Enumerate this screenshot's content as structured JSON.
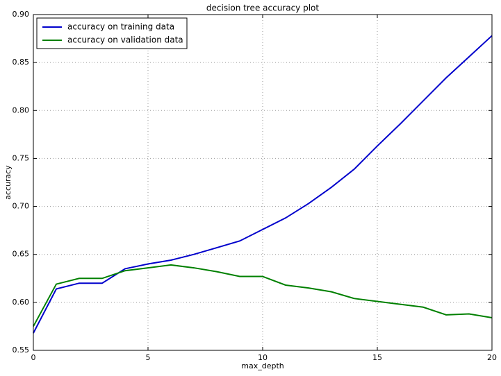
{
  "chart_data": {
    "type": "line",
    "title": "decision tree accuracy plot",
    "x_label": "max_depth",
    "y_label": "accuracy",
    "x": [
      0,
      1,
      2,
      3,
      4,
      5,
      6,
      7,
      8,
      9,
      10,
      11,
      12,
      13,
      14,
      15,
      16,
      17,
      18,
      19,
      20
    ],
    "series": [
      {
        "name": "accuracy on training data",
        "color": "#0000cc",
        "values": [
          0.568,
          0.614,
          0.62,
          0.62,
          0.635,
          0.64,
          0.644,
          0.65,
          0.657,
          0.664,
          0.676,
          0.688,
          0.703,
          0.72,
          0.739,
          0.763,
          0.786,
          0.81,
          0.834,
          0.856,
          0.878
        ]
      },
      {
        "name": "accuracy on validation data",
        "color": "#008000",
        "values": [
          0.575,
          0.619,
          0.625,
          0.625,
          0.633,
          0.636,
          0.639,
          0.636,
          0.632,
          0.627,
          0.627,
          0.618,
          0.615,
          0.611,
          0.604,
          0.601,
          0.598,
          0.595,
          0.587,
          0.588,
          0.584
        ]
      }
    ],
    "xlim": [
      0,
      20
    ],
    "xticks": [
      0,
      5,
      10,
      15,
      20
    ],
    "ylim": [
      0.55,
      0.9
    ],
    "yticks": [
      0.55,
      {
        "value": 0.6,
        "label": "0.60"
      },
      0.65,
      {
        "value": 0.7,
        "label": "0.70"
      },
      0.75,
      {
        "value": 0.8,
        "label": "0.80"
      },
      0.85,
      {
        "value": 0.9,
        "label": "0.90"
      }
    ],
    "grid": true,
    "legend": "upper left"
  }
}
